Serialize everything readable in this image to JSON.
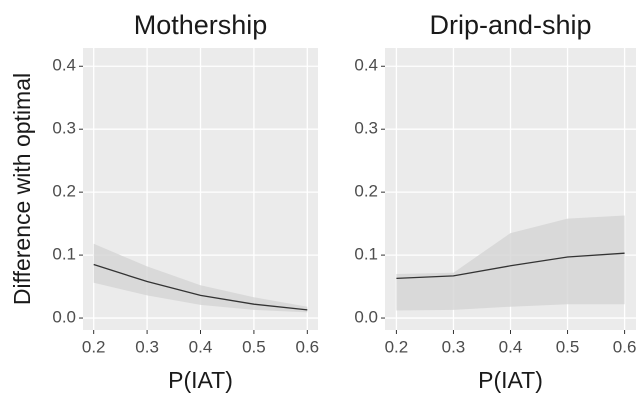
{
  "chart_data": [
    {
      "type": "line",
      "title": "Mothership",
      "xlabel": "P(IAT)",
      "ylabel": "Difference with optimal",
      "x": [
        0.2,
        0.3,
        0.4,
        0.5,
        0.6
      ],
      "series": [
        {
          "color": "#333333",
          "band_color": "#d4d4d4",
          "values": [
            0.085,
            0.058,
            0.036,
            0.022,
            0.013
          ],
          "lower": [
            0.056,
            0.036,
            0.021,
            0.013,
            0.009
          ],
          "upper": [
            0.118,
            0.082,
            0.052,
            0.033,
            0.018
          ]
        }
      ],
      "xlim": [
        0.18,
        0.62
      ],
      "xticks": [
        0.2,
        0.3,
        0.4,
        0.5,
        0.6
      ],
      "ylim": [
        -0.019,
        0.429
      ],
      "yticks": [
        {
          "value": 0,
          "label": "0.0"
        },
        0.1,
        0.2,
        0.3,
        0.4
      ],
      "grid": true
    },
    {
      "type": "line",
      "title": "Drip-and-ship",
      "xlabel": "P(IAT)",
      "x": [
        0.2,
        0.3,
        0.4,
        0.5,
        0.6
      ],
      "series": [
        {
          "color": "#333333",
          "band_color": "#d4d4d4",
          "values": [
            0.063,
            0.067,
            0.083,
            0.097,
            0.103
          ],
          "lower": [
            0.012,
            0.013,
            0.018,
            0.022,
            0.022
          ],
          "upper": [
            0.07,
            0.072,
            0.135,
            0.158,
            0.163
          ]
        }
      ],
      "xlim": [
        0.18,
        0.62
      ],
      "xticks": [
        0.2,
        0.3,
        0.4,
        0.5,
        0.6
      ],
      "ylim": [
        -0.019,
        0.429
      ],
      "yticks": [
        {
          "value": 0,
          "label": "0.0"
        },
        0.1,
        0.2,
        0.3,
        0.4
      ],
      "grid": true
    }
  ]
}
